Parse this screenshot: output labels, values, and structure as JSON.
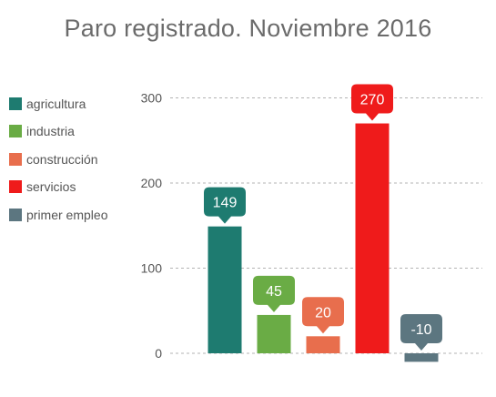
{
  "chart_data": {
    "type": "bar",
    "title": "Paro registrado. Noviembre 2016",
    "xlabel": "",
    "ylabel": "",
    "categories": [
      "agricultura",
      "industria",
      "construcción",
      "servicios",
      "primer empleo"
    ],
    "values": [
      149,
      45,
      20,
      270,
      -10
    ],
    "data_labels": [
      "149",
      "45",
      "20",
      "270",
      "-10"
    ],
    "colors": [
      "#1e7b70",
      "#6aac45",
      "#e86e4d",
      "#ef1b1b",
      "#5c7680"
    ],
    "ylim": [
      -10,
      310
    ],
    "yticks": [
      0,
      100,
      200,
      300
    ],
    "ytick_labels": [
      "0",
      "100",
      "200",
      "300"
    ],
    "grid": true,
    "legend_position": "left"
  }
}
